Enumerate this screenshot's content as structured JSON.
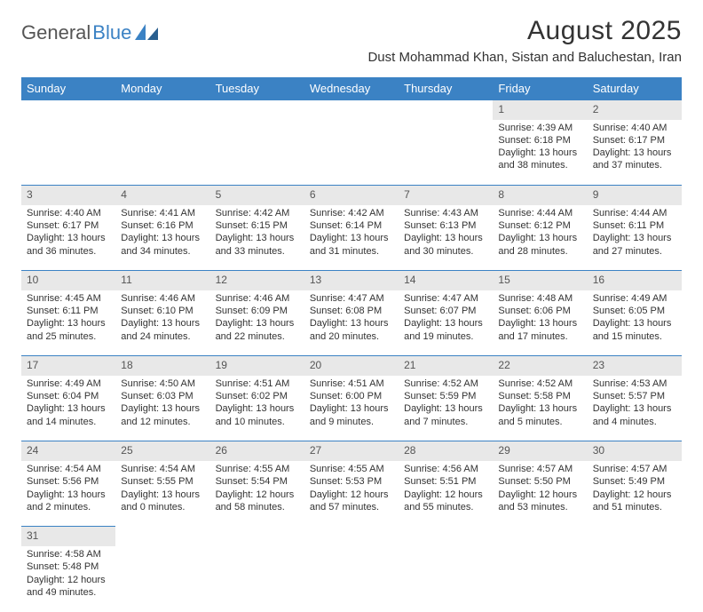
{
  "logo": {
    "part1": "General",
    "part2": "Blue"
  },
  "title": "August 2025",
  "location": "Dust Mohammad Khan, Sistan and Baluchestan, Iran",
  "columns": [
    "Sunday",
    "Monday",
    "Tuesday",
    "Wednesday",
    "Thursday",
    "Friday",
    "Saturday"
  ],
  "colors": {
    "header_bg": "#3b82c4",
    "header_text": "#ffffff",
    "daynum_bg": "#e8e8e8",
    "row_divider": "#3b82c4"
  },
  "weeks": [
    [
      null,
      null,
      null,
      null,
      null,
      {
        "n": "1",
        "sr": "Sunrise: 4:39 AM",
        "ss": "Sunset: 6:18 PM",
        "dl1": "Daylight: 13 hours",
        "dl2": "and 38 minutes."
      },
      {
        "n": "2",
        "sr": "Sunrise: 4:40 AM",
        "ss": "Sunset: 6:17 PM",
        "dl1": "Daylight: 13 hours",
        "dl2": "and 37 minutes."
      }
    ],
    [
      {
        "n": "3",
        "sr": "Sunrise: 4:40 AM",
        "ss": "Sunset: 6:17 PM",
        "dl1": "Daylight: 13 hours",
        "dl2": "and 36 minutes."
      },
      {
        "n": "4",
        "sr": "Sunrise: 4:41 AM",
        "ss": "Sunset: 6:16 PM",
        "dl1": "Daylight: 13 hours",
        "dl2": "and 34 minutes."
      },
      {
        "n": "5",
        "sr": "Sunrise: 4:42 AM",
        "ss": "Sunset: 6:15 PM",
        "dl1": "Daylight: 13 hours",
        "dl2": "and 33 minutes."
      },
      {
        "n": "6",
        "sr": "Sunrise: 4:42 AM",
        "ss": "Sunset: 6:14 PM",
        "dl1": "Daylight: 13 hours",
        "dl2": "and 31 minutes."
      },
      {
        "n": "7",
        "sr": "Sunrise: 4:43 AM",
        "ss": "Sunset: 6:13 PM",
        "dl1": "Daylight: 13 hours",
        "dl2": "and 30 minutes."
      },
      {
        "n": "8",
        "sr": "Sunrise: 4:44 AM",
        "ss": "Sunset: 6:12 PM",
        "dl1": "Daylight: 13 hours",
        "dl2": "and 28 minutes."
      },
      {
        "n": "9",
        "sr": "Sunrise: 4:44 AM",
        "ss": "Sunset: 6:11 PM",
        "dl1": "Daylight: 13 hours",
        "dl2": "and 27 minutes."
      }
    ],
    [
      {
        "n": "10",
        "sr": "Sunrise: 4:45 AM",
        "ss": "Sunset: 6:11 PM",
        "dl1": "Daylight: 13 hours",
        "dl2": "and 25 minutes."
      },
      {
        "n": "11",
        "sr": "Sunrise: 4:46 AM",
        "ss": "Sunset: 6:10 PM",
        "dl1": "Daylight: 13 hours",
        "dl2": "and 24 minutes."
      },
      {
        "n": "12",
        "sr": "Sunrise: 4:46 AM",
        "ss": "Sunset: 6:09 PM",
        "dl1": "Daylight: 13 hours",
        "dl2": "and 22 minutes."
      },
      {
        "n": "13",
        "sr": "Sunrise: 4:47 AM",
        "ss": "Sunset: 6:08 PM",
        "dl1": "Daylight: 13 hours",
        "dl2": "and 20 minutes."
      },
      {
        "n": "14",
        "sr": "Sunrise: 4:47 AM",
        "ss": "Sunset: 6:07 PM",
        "dl1": "Daylight: 13 hours",
        "dl2": "and 19 minutes."
      },
      {
        "n": "15",
        "sr": "Sunrise: 4:48 AM",
        "ss": "Sunset: 6:06 PM",
        "dl1": "Daylight: 13 hours",
        "dl2": "and 17 minutes."
      },
      {
        "n": "16",
        "sr": "Sunrise: 4:49 AM",
        "ss": "Sunset: 6:05 PM",
        "dl1": "Daylight: 13 hours",
        "dl2": "and 15 minutes."
      }
    ],
    [
      {
        "n": "17",
        "sr": "Sunrise: 4:49 AM",
        "ss": "Sunset: 6:04 PM",
        "dl1": "Daylight: 13 hours",
        "dl2": "and 14 minutes."
      },
      {
        "n": "18",
        "sr": "Sunrise: 4:50 AM",
        "ss": "Sunset: 6:03 PM",
        "dl1": "Daylight: 13 hours",
        "dl2": "and 12 minutes."
      },
      {
        "n": "19",
        "sr": "Sunrise: 4:51 AM",
        "ss": "Sunset: 6:02 PM",
        "dl1": "Daylight: 13 hours",
        "dl2": "and 10 minutes."
      },
      {
        "n": "20",
        "sr": "Sunrise: 4:51 AM",
        "ss": "Sunset: 6:00 PM",
        "dl1": "Daylight: 13 hours",
        "dl2": "and 9 minutes."
      },
      {
        "n": "21",
        "sr": "Sunrise: 4:52 AM",
        "ss": "Sunset: 5:59 PM",
        "dl1": "Daylight: 13 hours",
        "dl2": "and 7 minutes."
      },
      {
        "n": "22",
        "sr": "Sunrise: 4:52 AM",
        "ss": "Sunset: 5:58 PM",
        "dl1": "Daylight: 13 hours",
        "dl2": "and 5 minutes."
      },
      {
        "n": "23",
        "sr": "Sunrise: 4:53 AM",
        "ss": "Sunset: 5:57 PM",
        "dl1": "Daylight: 13 hours",
        "dl2": "and 4 minutes."
      }
    ],
    [
      {
        "n": "24",
        "sr": "Sunrise: 4:54 AM",
        "ss": "Sunset: 5:56 PM",
        "dl1": "Daylight: 13 hours",
        "dl2": "and 2 minutes."
      },
      {
        "n": "25",
        "sr": "Sunrise: 4:54 AM",
        "ss": "Sunset: 5:55 PM",
        "dl1": "Daylight: 13 hours",
        "dl2": "and 0 minutes."
      },
      {
        "n": "26",
        "sr": "Sunrise: 4:55 AM",
        "ss": "Sunset: 5:54 PM",
        "dl1": "Daylight: 12 hours",
        "dl2": "and 58 minutes."
      },
      {
        "n": "27",
        "sr": "Sunrise: 4:55 AM",
        "ss": "Sunset: 5:53 PM",
        "dl1": "Daylight: 12 hours",
        "dl2": "and 57 minutes."
      },
      {
        "n": "28",
        "sr": "Sunrise: 4:56 AM",
        "ss": "Sunset: 5:51 PM",
        "dl1": "Daylight: 12 hours",
        "dl2": "and 55 minutes."
      },
      {
        "n": "29",
        "sr": "Sunrise: 4:57 AM",
        "ss": "Sunset: 5:50 PM",
        "dl1": "Daylight: 12 hours",
        "dl2": "and 53 minutes."
      },
      {
        "n": "30",
        "sr": "Sunrise: 4:57 AM",
        "ss": "Sunset: 5:49 PM",
        "dl1": "Daylight: 12 hours",
        "dl2": "and 51 minutes."
      }
    ],
    [
      {
        "n": "31",
        "sr": "Sunrise: 4:58 AM",
        "ss": "Sunset: 5:48 PM",
        "dl1": "Daylight: 12 hours",
        "dl2": "and 49 minutes."
      },
      null,
      null,
      null,
      null,
      null,
      null
    ]
  ]
}
